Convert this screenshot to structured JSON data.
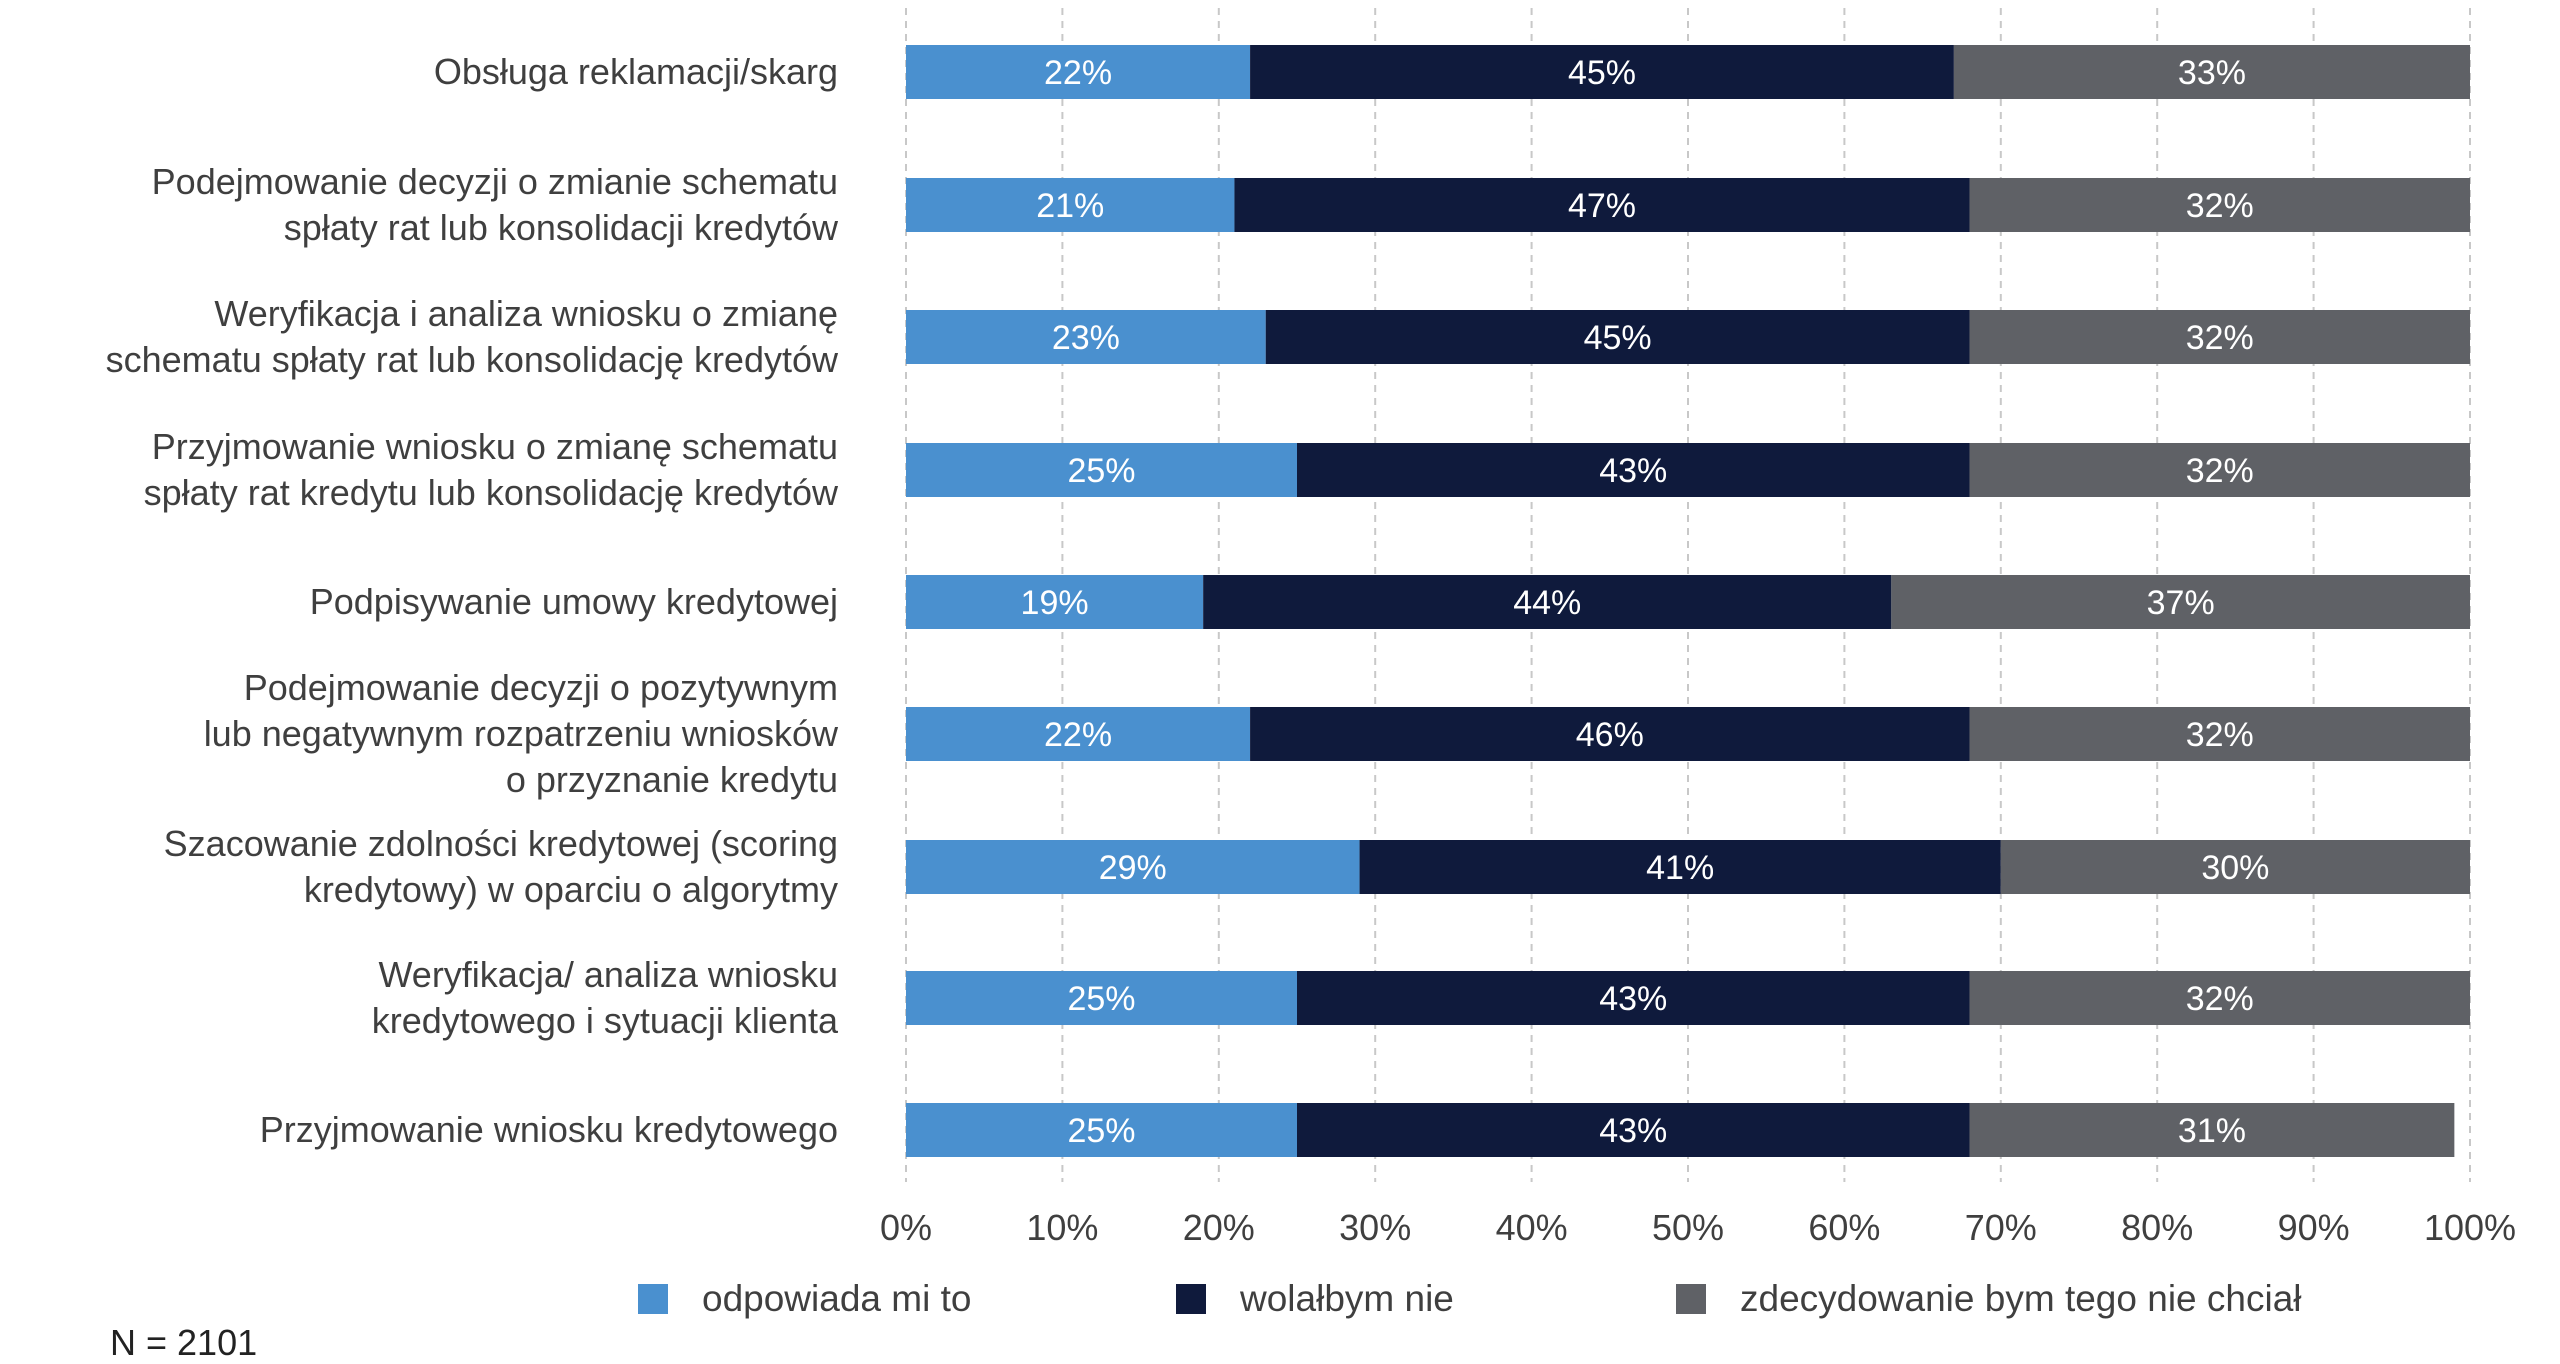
{
  "chart_data": {
    "type": "bar",
    "orientation": "horizontal",
    "stacked": true,
    "categories": [
      [
        "Obsługa reklamacji/skarg"
      ],
      [
        "Podejmowanie decyzji o zmianie schematu",
        "spłaty rat lub konsolidacji kredytów"
      ],
      [
        "Weryfikacja i analiza wniosku o zmianę",
        "schematu spłaty rat lub konsolidację kredytów"
      ],
      [
        "Przyjmowanie wniosku o zmianę schematu",
        "spłaty rat kredytu lub konsolidację kredytów"
      ],
      [
        "Podpisywanie umowy kredytowej"
      ],
      [
        "Podejmowanie decyzji o pozytywnym",
        "lub negatywnym rozpatrzeniu wniosków",
        "o przyznanie kredytu"
      ],
      [
        "Szacowanie zdolności kredytowej (scoring",
        "kredytowy) w oparciu o algorytmy"
      ],
      [
        "Weryfikacja/ analiza wniosku",
        "kredytowego i sytuacji klienta"
      ],
      [
        "Przyjmowanie wniosku kredytowego"
      ]
    ],
    "series": [
      {
        "name": "odpowiada mi to",
        "color": "#4a90cf",
        "values": [
          22,
          21,
          23,
          25,
          19,
          22,
          29,
          25,
          25
        ],
        "labels": [
          "22%",
          "21%",
          "23%",
          "25%",
          "19%",
          "22%",
          "29%",
          "25%",
          "25%"
        ]
      },
      {
        "name": "wolałbym nie",
        "color": "#0f1a3c",
        "values": [
          45,
          47,
          45,
          43,
          44,
          46,
          41,
          43,
          43
        ],
        "labels": [
          "45%",
          "47%",
          "45%",
          "43%",
          "44%",
          "46%",
          "41%",
          "43%",
          "43%"
        ]
      },
      {
        "name": "zdecydowanie bym tego nie chciał",
        "color": "#5f6166",
        "values": [
          33,
          32,
          32,
          32,
          37,
          32,
          30,
          32,
          31
        ],
        "labels": [
          "33%",
          "32%",
          "32%",
          "32%",
          "37%",
          "32%",
          "30%",
          "32%",
          "31%"
        ]
      }
    ],
    "xlim": [
      0,
      100
    ],
    "xticks": [
      "0%",
      "10%",
      "20%",
      "30%",
      "40%",
      "50%",
      "60%",
      "70%",
      "80%",
      "90%",
      "100%"
    ],
    "grid": "vertical-dashed",
    "legend_position": "bottom"
  },
  "note": "N = 2101"
}
